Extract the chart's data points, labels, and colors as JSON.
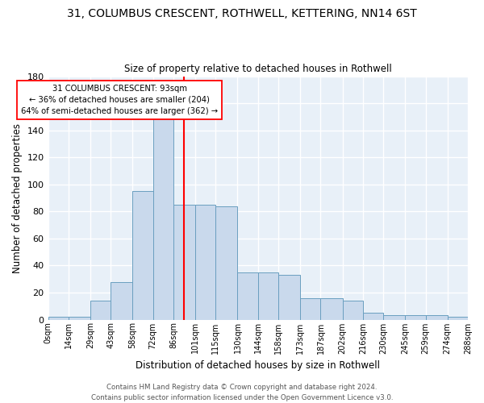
{
  "title1": "31, COLUMBUS CRESCENT, ROTHWELL, KETTERING, NN14 6ST",
  "title2": "Size of property relative to detached houses in Rothwell",
  "xlabel": "Distribution of detached houses by size in Rothwell",
  "ylabel": "Number of detached properties",
  "bar_color": "#c9d9ec",
  "bar_edge_color": "#6a9fc0",
  "background_color": "#e8f0f8",
  "grid_color": "white",
  "bin_edges": [
    0,
    14,
    29,
    43,
    58,
    72,
    86,
    101,
    115,
    130,
    144,
    158,
    173,
    187,
    202,
    216,
    230,
    245,
    259,
    274,
    288
  ],
  "bin_labels": [
    "0sqm",
    "14sqm",
    "29sqm",
    "43sqm",
    "58sqm",
    "72sqm",
    "86sqm",
    "101sqm",
    "115sqm",
    "130sqm",
    "144sqm",
    "158sqm",
    "173sqm",
    "187sqm",
    "202sqm",
    "216sqm",
    "230sqm",
    "245sqm",
    "259sqm",
    "274sqm",
    "288sqm"
  ],
  "bar_heights": [
    2,
    2,
    14,
    28,
    95,
    150,
    85,
    85,
    84,
    35,
    35,
    33,
    16,
    16,
    14,
    5,
    3,
    3,
    3,
    2
  ],
  "ylim": [
    0,
    180
  ],
  "yticks": [
    0,
    20,
    40,
    60,
    80,
    100,
    120,
    140,
    160,
    180
  ],
  "property_size": 93,
  "annotation_text": "31 COLUMBUS CRESCENT: 93sqm\n← 36% of detached houses are smaller (204)\n64% of semi-detached houses are larger (362) →",
  "vline_color": "red",
  "annotation_box_facecolor": "white",
  "annotation_box_edge": "red",
  "title1_fontsize": 10,
  "title2_fontsize": 9,
  "footer1": "Contains HM Land Registry data © Crown copyright and database right 2024.",
  "footer2": "Contains public sector information licensed under the Open Government Licence v3.0."
}
